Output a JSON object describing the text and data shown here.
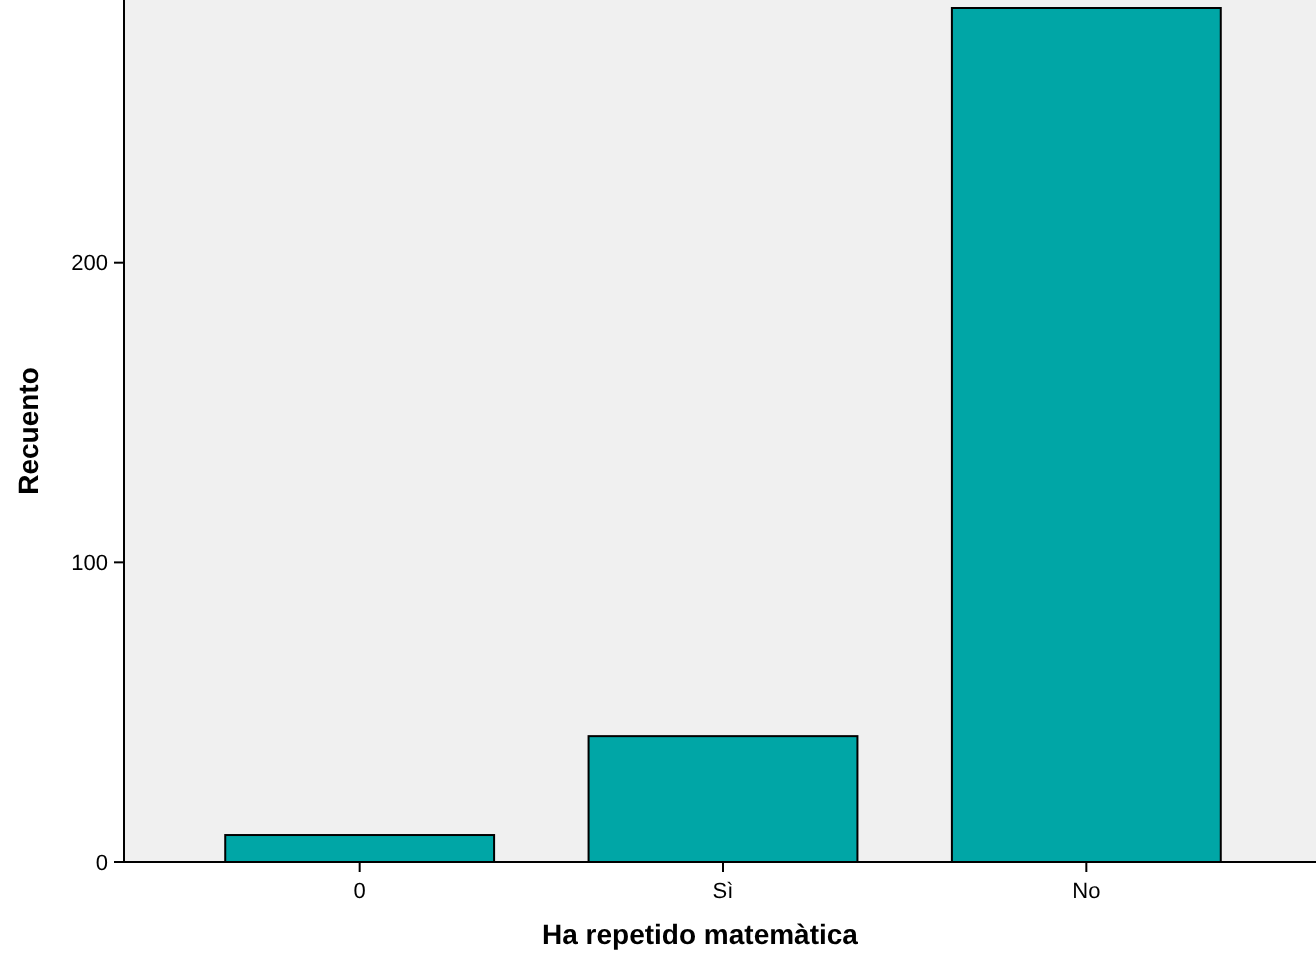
{
  "chart_data": {
    "type": "bar",
    "xlabel": "Ha repetido matemàtica",
    "ylabel": "Recuento",
    "categories": [
      "0",
      "Sì",
      "No"
    ],
    "values": [
      9,
      42,
      285
    ],
    "color": "#00a6a6",
    "ylim": [
      0,
      285
    ],
    "yticks": [
      0,
      100,
      200
    ],
    "grid": false
  }
}
